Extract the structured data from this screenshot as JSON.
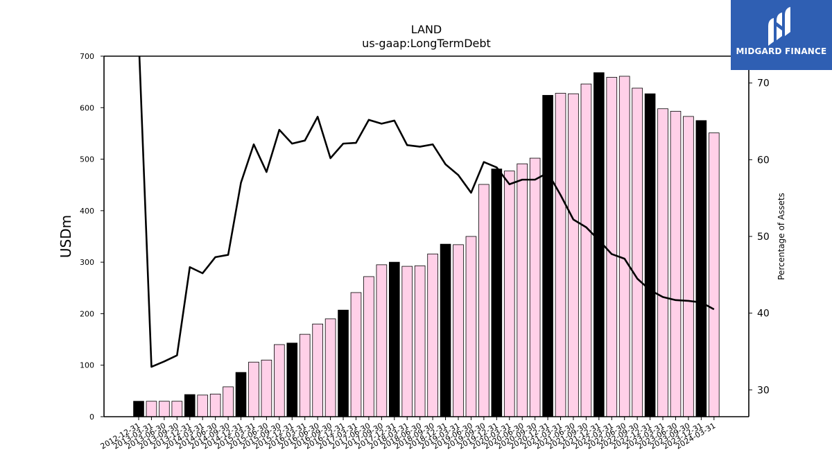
{
  "chart_data": {
    "type": "bar+line",
    "title": "LAND",
    "subtitle": "us-gaap:LongTermDebt",
    "ylabel": "USDm",
    "y2label": "Percentage of Assets",
    "ylim": [
      0,
      700
    ],
    "y2lim": [
      26.5,
      73.5
    ],
    "yticks": [
      "0",
      "100",
      "200",
      "300",
      "400",
      "500",
      "600",
      "700"
    ],
    "y2ticks": [
      "30",
      "40",
      "50",
      "60",
      "70"
    ],
    "categories": [
      "2012-12-31",
      "2013-03-31",
      "2013-06-30",
      "2013-09-30",
      "2013-12-31",
      "2014-03-31",
      "2014-06-30",
      "2014-09-30",
      "2014-12-31",
      "2015-03-31",
      "2015-06-30",
      "2015-09-30",
      "2015-12-31",
      "2016-03-31",
      "2016-06-30",
      "2016-09-30",
      "2016-12-31",
      "2017-03-31",
      "2017-06-30",
      "2017-09-30",
      "2017-12-31",
      "2018-03-31",
      "2018-06-30",
      "2018-09-30",
      "2018-12-31",
      "2019-03-31",
      "2019-06-30",
      "2019-09-30",
      "2019-12-31",
      "2020-03-31",
      "2020-06-30",
      "2020-09-30",
      "2020-12-31",
      "2021-03-31",
      "2021-06-30",
      "2021-09-30",
      "2021-12-31",
      "2022-03-31",
      "2022-06-30",
      "2022-09-30",
      "2022-12-31",
      "2023-03-31",
      "2023-06-30",
      "2023-09-30",
      "2023-12-31",
      "2024-03-31"
    ],
    "series": [
      {
        "name": "",
        "type": "bar",
        "axis": "left",
        "values": [
          30,
          30,
          30,
          30,
          43,
          42,
          44,
          58,
          86,
          106,
          110,
          140,
          143,
          160,
          180,
          190,
          207,
          241,
          272,
          295,
          300,
          292,
          293,
          316,
          335,
          334,
          350,
          451,
          481,
          477,
          491,
          502,
          624,
          628,
          627,
          646,
          668,
          659,
          661,
          638,
          627,
          598,
          593,
          583,
          575,
          551
        ]
      },
      {
        "name": "",
        "type": "line",
        "axis": "right",
        "values": [
          76,
          33.0,
          33.7,
          34.5,
          46.0,
          45.2,
          47.3,
          47.6,
          57.0,
          62.0,
          58.4,
          63.9,
          62.1,
          62.5,
          65.6,
          60.2,
          62.1,
          62.2,
          65.2,
          64.7,
          65.1,
          61.9,
          61.7,
          62.0,
          59.4,
          58.0,
          55.7,
          59.7,
          59.0,
          56.8,
          57.4,
          57.4,
          58.3,
          55.4,
          52.2,
          51.2,
          49.5,
          47.7,
          47.1,
          44.5,
          43.0,
          42.1,
          41.7,
          41.6,
          41.4,
          40.5
        ]
      }
    ],
    "colors": {
      "bar_fill": "#ffd0e8",
      "bar_highlight": "#000000",
      "line": "#000000"
    },
    "highlighted_categories_note": "December year-end bars drawn in black",
    "grid": false,
    "legend": "none"
  },
  "brand": {
    "name": "MIDGARD FINANCE",
    "icon": "midgard-logo-icon"
  }
}
